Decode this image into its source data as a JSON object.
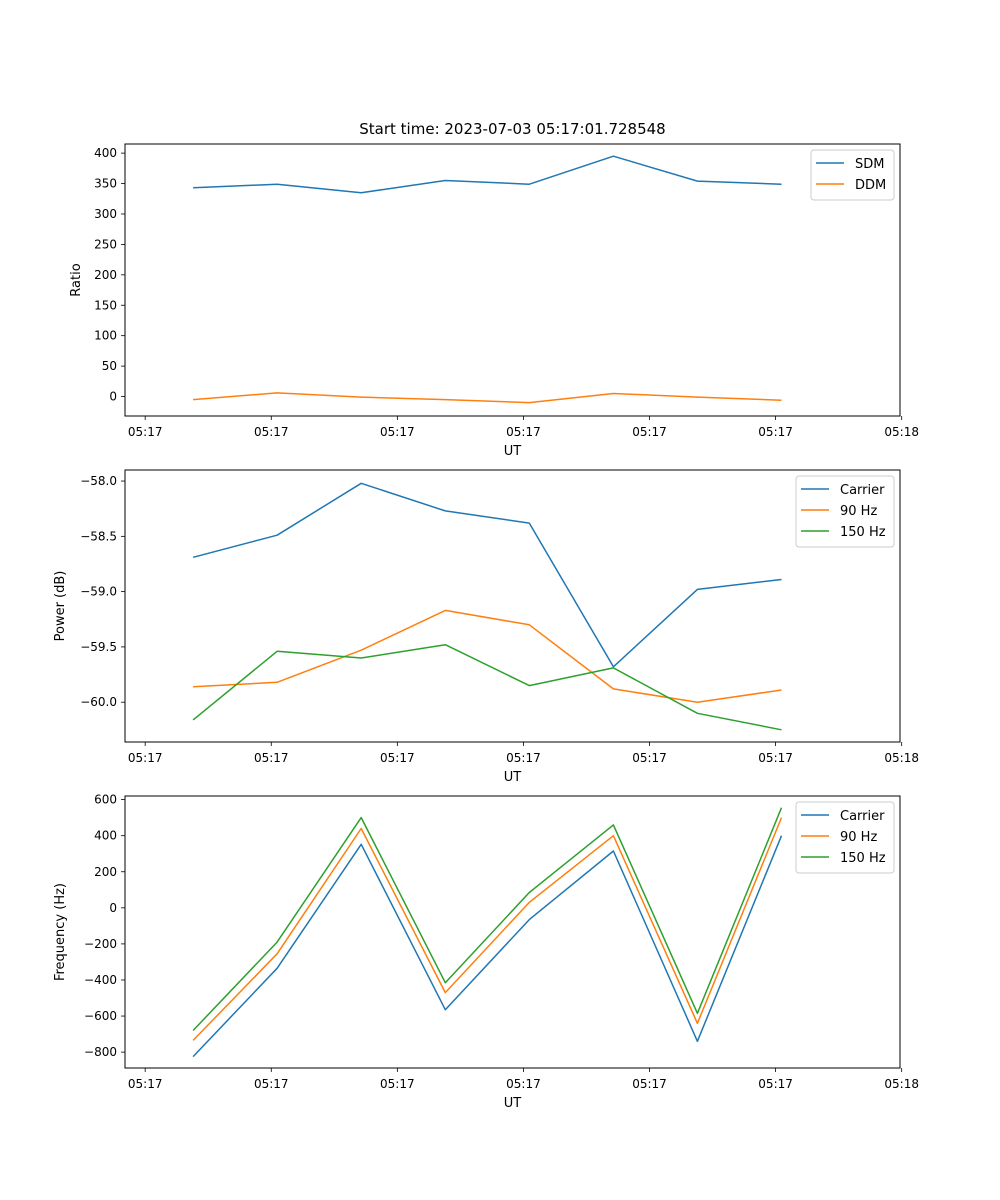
{
  "figure_title": "Start time: 2023-07-03 05:17:01.728548",
  "colors": {
    "blue": "#1f77b4",
    "orange": "#ff7f0e",
    "green": "#2ca02c"
  },
  "chart_data": [
    {
      "type": "line",
      "title": "Start time: 2023-07-03 05:17:01.728548",
      "xlabel": "UT",
      "ylabel": "Ratio",
      "x": [
        1,
        2,
        3,
        4,
        5,
        6,
        7,
        8
      ],
      "xlim": [
        0.19,
        9.41
      ],
      "x_ticks": [
        0.43,
        1.93,
        3.43,
        4.93,
        6.43,
        7.93,
        9.43
      ],
      "x_tick_labels": [
        "05:17",
        "05:17",
        "05:17",
        "05:17",
        "05:17",
        "05:17",
        "05:18"
      ],
      "ylim": [
        -32,
        415
      ],
      "y_ticks": [
        0,
        50,
        100,
        150,
        200,
        250,
        300,
        350,
        400
      ],
      "y_tick_labels": [
        "0",
        "50",
        "100",
        "150",
        "200",
        "250",
        "300",
        "350",
        "400"
      ],
      "legend_position": "top-right",
      "series": [
        {
          "name": "SDM",
          "color": "#1f77b4",
          "values": [
            343,
            349,
            335,
            355,
            349,
            395,
            354,
            349
          ]
        },
        {
          "name": "DDM",
          "color": "#ff7f0e",
          "values": [
            -5,
            6,
            -1,
            -5,
            -10,
            5,
            -1,
            -6
          ]
        }
      ]
    },
    {
      "type": "line",
      "xlabel": "UT",
      "ylabel": "Power (dB)",
      "x": [
        1,
        2,
        3,
        4,
        5,
        6,
        7,
        8
      ],
      "xlim": [
        0.19,
        9.41
      ],
      "x_ticks": [
        0.43,
        1.93,
        3.43,
        4.93,
        6.43,
        7.93,
        9.43
      ],
      "x_tick_labels": [
        "05:17",
        "05:17",
        "05:17",
        "05:17",
        "05:17",
        "05:17",
        "05:18"
      ],
      "ylim": [
        -60.36,
        -57.9
      ],
      "y_ticks": [
        -60.0,
        -59.5,
        -59.0,
        -58.5,
        -58.0
      ],
      "y_tick_labels": [
        "−60.0",
        "−59.5",
        "−59.0",
        "−58.5",
        "−58.0"
      ],
      "legend_position": "top-right",
      "series": [
        {
          "name": "Carrier",
          "color": "#1f77b4",
          "values": [
            -58.69,
            -58.49,
            -58.02,
            -58.27,
            -58.38,
            -59.68,
            -58.98,
            -58.89
          ]
        },
        {
          "name": "90 Hz",
          "color": "#ff7f0e",
          "values": [
            -59.86,
            -59.82,
            -59.53,
            -59.17,
            -59.3,
            -59.88,
            -60.0,
            -59.89
          ]
        },
        {
          "name": "150 Hz",
          "color": "#2ca02c",
          "values": [
            -60.16,
            -59.54,
            -59.6,
            -59.48,
            -59.85,
            -59.69,
            -60.1,
            -60.25
          ]
        }
      ]
    },
    {
      "type": "line",
      "xlabel": "UT",
      "ylabel": "Frequency (Hz)",
      "x": [
        1,
        2,
        3,
        4,
        5,
        6,
        7,
        8
      ],
      "xlim": [
        0.19,
        9.41
      ],
      "x_ticks": [
        0.43,
        1.93,
        3.43,
        4.93,
        6.43,
        7.93,
        9.43
      ],
      "x_tick_labels": [
        "05:17",
        "05:17",
        "05:17",
        "05:17",
        "05:17",
        "05:17",
        "05:18"
      ],
      "ylim": [
        -888,
        620
      ],
      "y_ticks": [
        -800,
        -600,
        -400,
        -200,
        0,
        200,
        400,
        600
      ],
      "y_tick_labels": [
        "−800",
        "−600",
        "−400",
        "−200",
        "0",
        "200",
        "400",
        "600"
      ],
      "legend_position": "top-right",
      "series": [
        {
          "name": "Carrier",
          "color": "#1f77b4",
          "values": [
            -825,
            -335,
            352,
            -565,
            -65,
            315,
            -740,
            400
          ]
        },
        {
          "name": "90 Hz",
          "color": "#ff7f0e",
          "values": [
            -735,
            -255,
            440,
            -470,
            30,
            400,
            -640,
            500
          ]
        },
        {
          "name": "150 Hz",
          "color": "#2ca02c",
          "values": [
            -680,
            -190,
            500,
            -415,
            85,
            460,
            -585,
            555
          ]
        }
      ]
    }
  ]
}
